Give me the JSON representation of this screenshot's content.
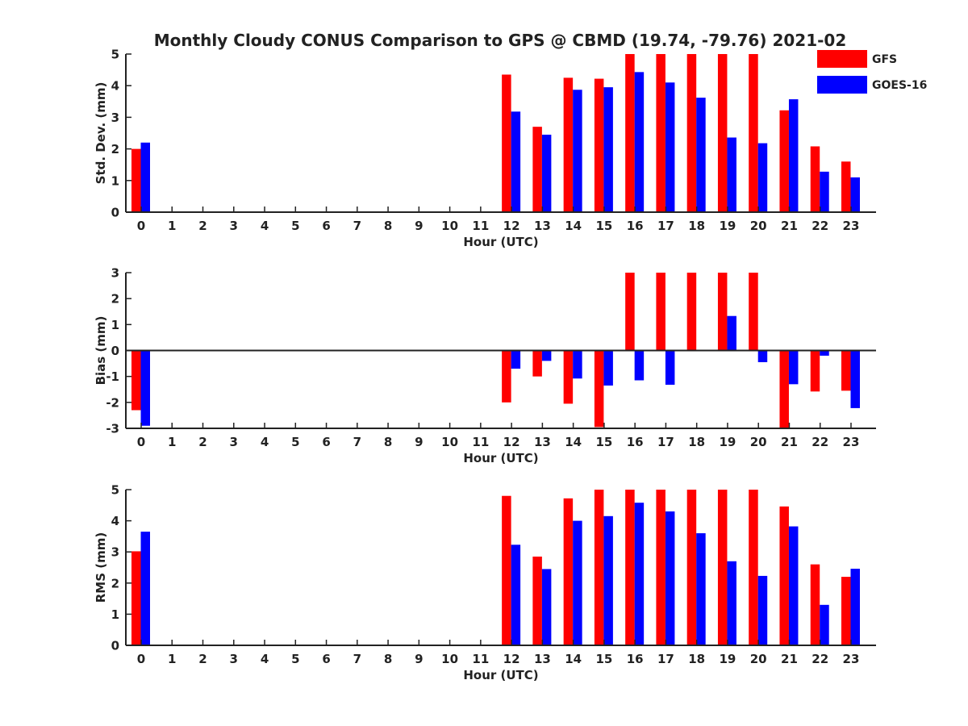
{
  "figure_title": "Monthly Cloudy CONUS Comparison to GPS @ CBMD (19.74, -79.76) 2021-02",
  "colors": {
    "GFS": "#ff0000",
    "GOES-16": "#0000ff"
  },
  "legend": [
    "GFS",
    "GOES-16"
  ],
  "chart_data": [
    {
      "type": "bar",
      "ylabel": "Std. Dev. (mm)",
      "xlabel": "Hour (UTC)",
      "ylim": [
        0,
        5
      ],
      "yticks": [
        0,
        1,
        2,
        3,
        4,
        5
      ],
      "categories": [
        "0",
        "1",
        "2",
        "3",
        "4",
        "5",
        "6",
        "7",
        "8",
        "9",
        "10",
        "11",
        "12",
        "13",
        "14",
        "15",
        "16",
        "17",
        "18",
        "19",
        "20",
        "21",
        "22",
        "23"
      ],
      "grid": false,
      "legend_position": "top-right",
      "series": [
        {
          "name": "GFS",
          "values": [
            2.0,
            null,
            null,
            null,
            null,
            null,
            null,
            null,
            null,
            null,
            null,
            null,
            4.35,
            2.7,
            4.25,
            4.22,
            5.0,
            5.0,
            5.0,
            5.0,
            5.0,
            3.22,
            2.08,
            1.6
          ]
        },
        {
          "name": "GOES-16",
          "values": [
            2.2,
            null,
            null,
            null,
            null,
            null,
            null,
            null,
            null,
            null,
            null,
            null,
            3.18,
            2.45,
            3.87,
            3.95,
            4.43,
            4.1,
            3.62,
            2.36,
            2.18,
            3.57,
            1.28,
            1.1
          ]
        }
      ]
    },
    {
      "type": "bar",
      "ylabel": "Bias (mm)",
      "xlabel": "Hour (UTC)",
      "ylim": [
        -3,
        3
      ],
      "yticks": [
        -3,
        -2,
        -1,
        0,
        1,
        2,
        3
      ],
      "categories": [
        "0",
        "1",
        "2",
        "3",
        "4",
        "5",
        "6",
        "7",
        "8",
        "9",
        "10",
        "11",
        "12",
        "13",
        "14",
        "15",
        "16",
        "17",
        "18",
        "19",
        "20",
        "21",
        "22",
        "23"
      ],
      "grid": false,
      "zero_line": true,
      "series": [
        {
          "name": "GFS",
          "values": [
            -2.3,
            null,
            null,
            null,
            null,
            null,
            null,
            null,
            null,
            null,
            null,
            null,
            -2.0,
            -1.0,
            -2.05,
            -2.95,
            3.0,
            3.0,
            3.0,
            3.0,
            3.0,
            -3.0,
            -1.58,
            -1.55
          ]
        },
        {
          "name": "GOES-16",
          "values": [
            -2.9,
            null,
            null,
            null,
            null,
            null,
            null,
            null,
            null,
            null,
            null,
            null,
            -0.7,
            -0.4,
            -1.08,
            -1.35,
            -1.15,
            -1.32,
            0.02,
            1.33,
            -0.45,
            -1.3,
            -0.2,
            -2.22
          ]
        }
      ]
    },
    {
      "type": "bar",
      "ylabel": "RMS (mm)",
      "xlabel": "Hour (UTC)",
      "ylim": [
        0,
        5
      ],
      "yticks": [
        0,
        1,
        2,
        3,
        4,
        5
      ],
      "categories": [
        "0",
        "1",
        "2",
        "3",
        "4",
        "5",
        "6",
        "7",
        "8",
        "9",
        "10",
        "11",
        "12",
        "13",
        "14",
        "15",
        "16",
        "17",
        "18",
        "19",
        "20",
        "21",
        "22",
        "23"
      ],
      "grid": false,
      "series": [
        {
          "name": "GFS",
          "values": [
            3.02,
            null,
            null,
            null,
            null,
            null,
            null,
            null,
            null,
            null,
            null,
            null,
            4.8,
            2.85,
            4.72,
            5.0,
            5.0,
            5.0,
            5.0,
            5.0,
            5.0,
            4.46,
            2.6,
            2.2
          ]
        },
        {
          "name": "GOES-16",
          "values": [
            3.65,
            null,
            null,
            null,
            null,
            null,
            null,
            null,
            null,
            null,
            null,
            null,
            3.23,
            2.45,
            4.0,
            4.15,
            4.58,
            4.3,
            3.6,
            2.7,
            2.23,
            3.82,
            1.3,
            2.46
          ]
        }
      ]
    }
  ]
}
